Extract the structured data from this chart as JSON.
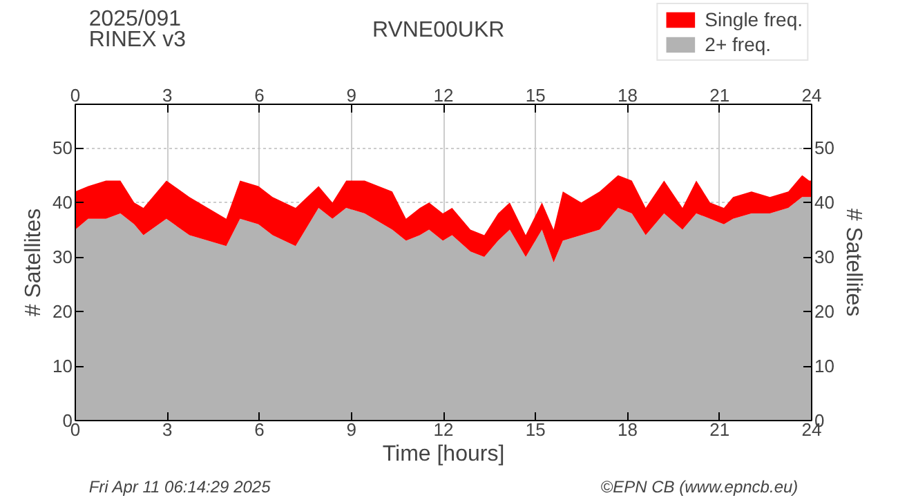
{
  "chart_data": {
    "type": "area",
    "stacked": true,
    "title": "RVNE00UKR",
    "xlabel": "Time [hours]",
    "ylabel": "# Satellites",
    "y2label": "# Satellites",
    "annotations": [
      "2025/091",
      "RINEX v3",
      "Fri Apr 11 06:14:29 2025",
      "©EPN CB (www.epncb.eu)"
    ],
    "x": [
      0,
      0.42,
      1.0,
      1.47,
      1.92,
      2.22,
      2.97,
      3.72,
      4.92,
      5.37,
      5.97,
      6.43,
      7.18,
      7.93,
      8.38,
      8.83,
      9.43,
      10.33,
      10.78,
      11.23,
      11.53,
      11.98,
      12.28,
      12.88,
      13.33,
      13.78,
      14.16,
      14.68,
      15.21,
      15.59,
      15.89,
      16.49,
      17.09,
      17.69,
      18.14,
      18.59,
      19.19,
      19.79,
      20.24,
      20.69,
      21.14,
      21.44,
      22.04,
      22.64,
      23.24,
      23.69,
      23.92,
      24
    ],
    "series": [
      {
        "name": "2+ freq.",
        "color": "#b3b3b3",
        "values": [
          35,
          37,
          37,
          38,
          36,
          34,
          37,
          34,
          32,
          37,
          36,
          34,
          32,
          39,
          37,
          39,
          38,
          35,
          33,
          34,
          35,
          33,
          34,
          31,
          30,
          33,
          35,
          30,
          35,
          29,
          33,
          34,
          35,
          39,
          38,
          34,
          38,
          35,
          38,
          37,
          36,
          37,
          38,
          38,
          39,
          41,
          41,
          41
        ]
      },
      {
        "name": "Single freq.",
        "color": "#ff0000",
        "values": [
          7,
          6,
          7,
          6,
          4,
          5,
          7,
          7,
          5,
          7,
          7,
          7,
          7,
          4,
          3,
          5,
          6,
          7,
          4,
          5,
          5,
          5,
          5,
          4,
          4,
          5,
          5,
          4,
          5,
          6,
          9,
          6,
          7,
          6,
          6,
          5,
          6,
          4,
          6,
          3,
          3,
          4,
          4,
          3,
          3,
          4,
          3,
          3
        ]
      }
    ],
    "xlim": [
      0,
      24
    ],
    "xticks": [
      0,
      3,
      6,
      9,
      12,
      15,
      18,
      21,
      24
    ],
    "x2lim": [
      0,
      24
    ],
    "x2ticks": [
      0,
      3,
      6,
      9,
      12,
      15,
      18,
      21,
      24
    ],
    "ylim": [
      0,
      58
    ],
    "yticks": [
      0,
      10,
      20,
      30,
      40,
      50
    ],
    "y2lim": [
      0,
      58
    ],
    "y2ticks": [
      0,
      10,
      20,
      30,
      40,
      50
    ],
    "grid": true,
    "legend": "top right"
  }
}
